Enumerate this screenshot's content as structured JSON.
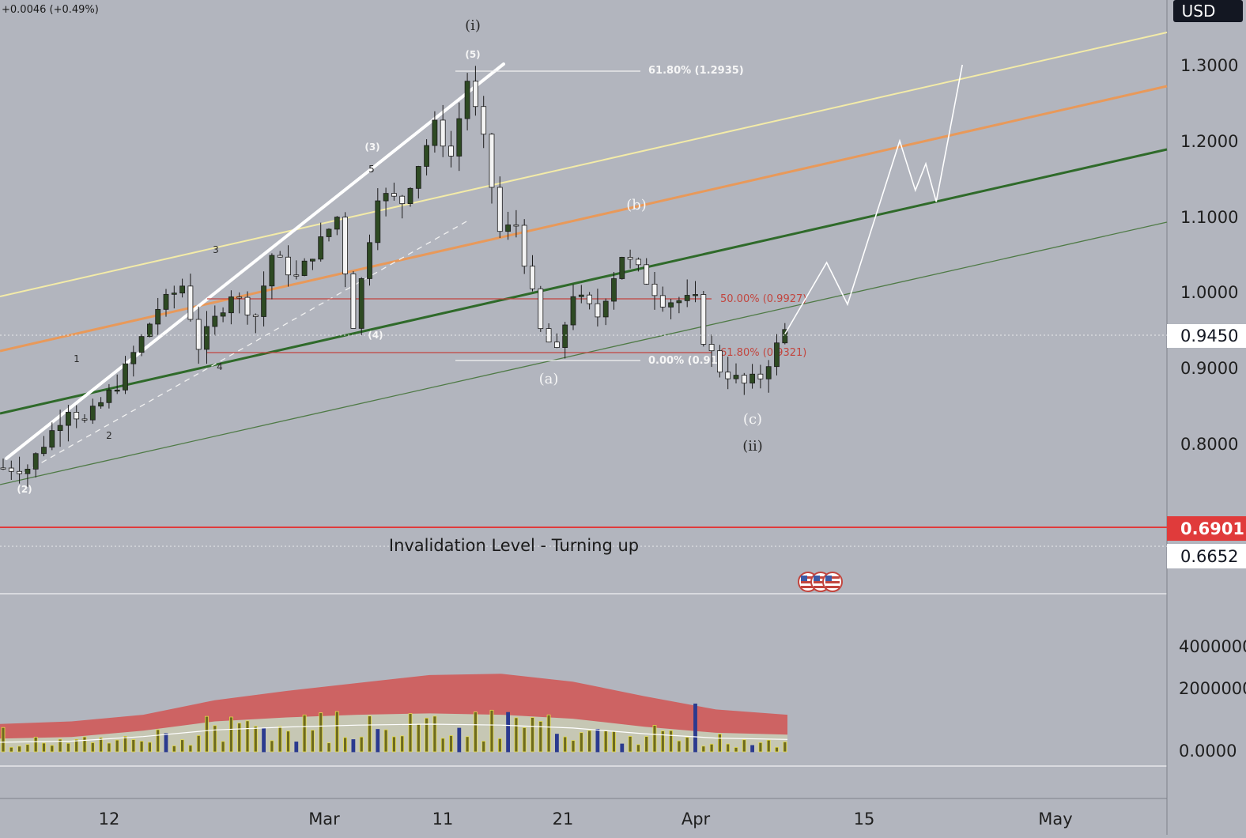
{
  "header": {
    "change_text": "+0.0046 (+0.49%)"
  },
  "price_axis": {
    "currency": "USD",
    "ticks": [
      "1.3000",
      "1.2000",
      "1.1000",
      "1.0000",
      "0.9000",
      "0.8000"
    ],
    "current_price": "0.9450",
    "invalidation_price": "0.6901",
    "lower_level_price": "0.6652"
  },
  "volume_axis": {
    "ticks": [
      "4000000",
      "2000000",
      "0.0000"
    ]
  },
  "time_axis": {
    "ticks": [
      "12",
      "Mar",
      "11",
      "21",
      "Apr",
      "15",
      "May"
    ]
  },
  "fibonacci": {
    "upper": {
      "top": "61.80% (1.2935)",
      "bottom": "0.00% (0.91"
    },
    "lower": {
      "mid": "50.00% (0.9927)",
      "low": "61.80% (0.9321)"
    }
  },
  "annotations": {
    "invalidation": "Invalidation Level - Turning up",
    "wave_i": "(i)",
    "wave_ii": "(ii)",
    "wave_a": "(a)",
    "wave_b": "(b)",
    "wave_c": "(c)",
    "sub": [
      "(2)",
      "(3)",
      "(4)",
      "(5)",
      "1",
      "2",
      "3",
      "4",
      "5"
    ]
  },
  "colors": {
    "background": "#b2b5be",
    "yellow_channel": "#f3eba8",
    "orange_channel": "#e8995a",
    "green_channel": "#2f6a2a",
    "green_thin": "#4f7a46",
    "fib_red": "#c2453e",
    "invalidation_red": "#e03b3b",
    "volume_band": "#cd6363",
    "volume_inner": "#c6c7b4"
  },
  "chart_data": {
    "type": "candlestick",
    "price_ylim": [
      0.6,
      1.36
    ],
    "y_ticks": [
      1.3,
      1.2,
      1.1,
      1.0,
      0.9,
      0.8
    ],
    "x_ticks": [
      "12",
      "Mar",
      "11",
      "21",
      "Apr",
      "15",
      "May"
    ],
    "waypoints": [
      [
        0,
        0.77
      ],
      [
        3,
        0.77
      ],
      [
        8,
        0.85
      ],
      [
        10,
        0.83
      ],
      [
        14,
        0.88
      ],
      [
        19,
        0.98
      ],
      [
        22,
        1.01
      ],
      [
        24,
        0.93
      ],
      [
        28,
        1.0
      ],
      [
        31,
        0.97
      ],
      [
        33,
        1.05
      ],
      [
        36,
        1.02
      ],
      [
        41,
        1.1
      ],
      [
        43,
        0.96
      ],
      [
        46,
        1.13
      ],
      [
        49,
        1.12
      ],
      [
        53,
        1.22
      ],
      [
        55,
        1.18
      ],
      [
        57,
        1.28
      ],
      [
        59,
        1.2
      ],
      [
        61,
        1.08
      ],
      [
        63,
        1.09
      ],
      [
        66,
        0.95
      ],
      [
        68,
        0.92
      ],
      [
        70,
        1.0
      ],
      [
        73,
        0.97
      ],
      [
        76,
        1.05
      ],
      [
        78,
        1.03
      ],
      [
        81,
        0.99
      ],
      [
        85,
        0.99
      ],
      [
        86,
        0.94
      ],
      [
        88,
        0.9
      ],
      [
        91,
        0.88
      ],
      [
        93,
        0.89
      ],
      [
        96,
        0.95
      ]
    ],
    "projection": [
      [
        0.946,
        0
      ],
      [
        1.04,
        4
      ],
      [
        0.985,
        6
      ],
      [
        1.2,
        11
      ],
      [
        1.135,
        12.5
      ],
      [
        1.17,
        13.5
      ],
      [
        1.12,
        14.5
      ],
      [
        1.3,
        17
      ]
    ],
    "volume": {
      "ylim": [
        0,
        4000000
      ],
      "band_upper": [
        1050000,
        1150000,
        1400000,
        1950000,
        2300000,
        2600000,
        2900000,
        2950000,
        2650000,
        2100000,
        1600000,
        1400000
      ],
      "band_lower": [
        500000,
        560000,
        800000,
        1150000,
        1300000,
        1400000,
        1450000,
        1400000,
        1250000,
        950000,
        720000,
        650000
      ]
    },
    "fib_levels": [
      {
        "label": "61.80% (1.2935)",
        "value": 1.2935
      },
      {
        "label": "0.00% (0.91",
        "value": 0.91
      },
      {
        "label": "50.00% (0.9927)",
        "value": 0.9927
      },
      {
        "label": "61.80% (0.9321)",
        "value": 0.9321
      }
    ],
    "horizontal_levels": [
      0.945,
      0.6901,
      0.6652
    ]
  }
}
